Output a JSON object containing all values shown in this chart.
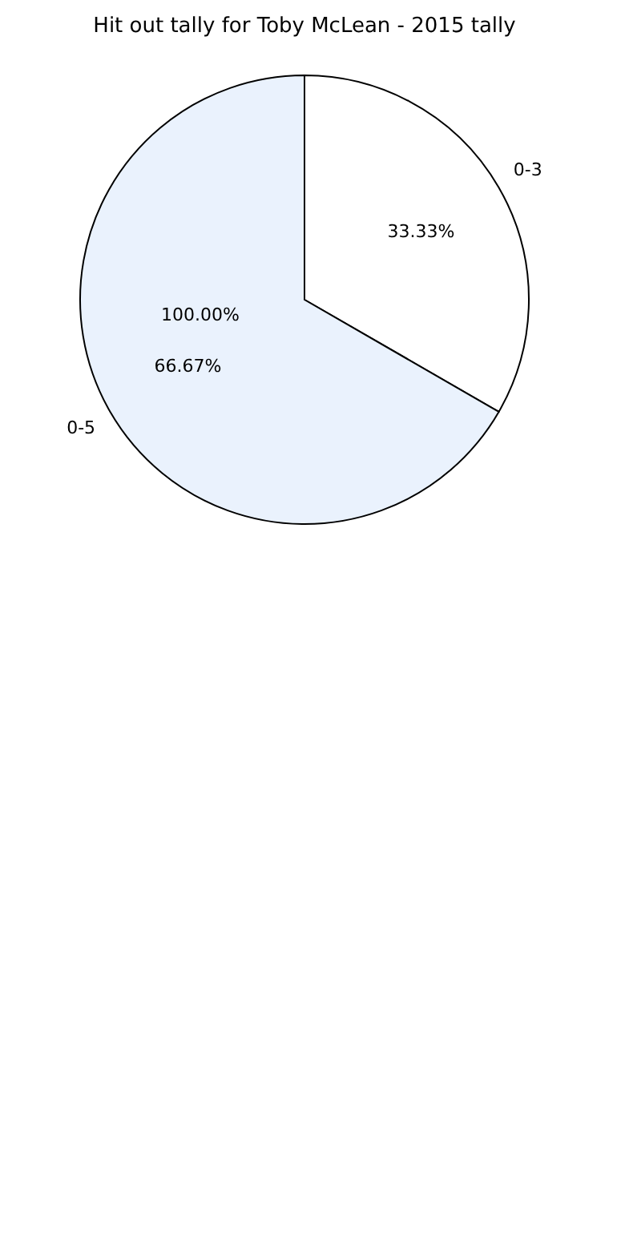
{
  "chart_data": {
    "type": "pie",
    "title": "Hit out tally for Toby McLean - 2015 tally",
    "categories": [
      "0-3",
      "0-5"
    ],
    "values": [
      33.33,
      66.67
    ],
    "colors": [
      "#ffffff",
      "#eaf2fd"
    ],
    "value_labels": [
      "33.33%",
      "66.67%"
    ],
    "annotations": [
      "100.00%"
    ],
    "legend": false
  }
}
